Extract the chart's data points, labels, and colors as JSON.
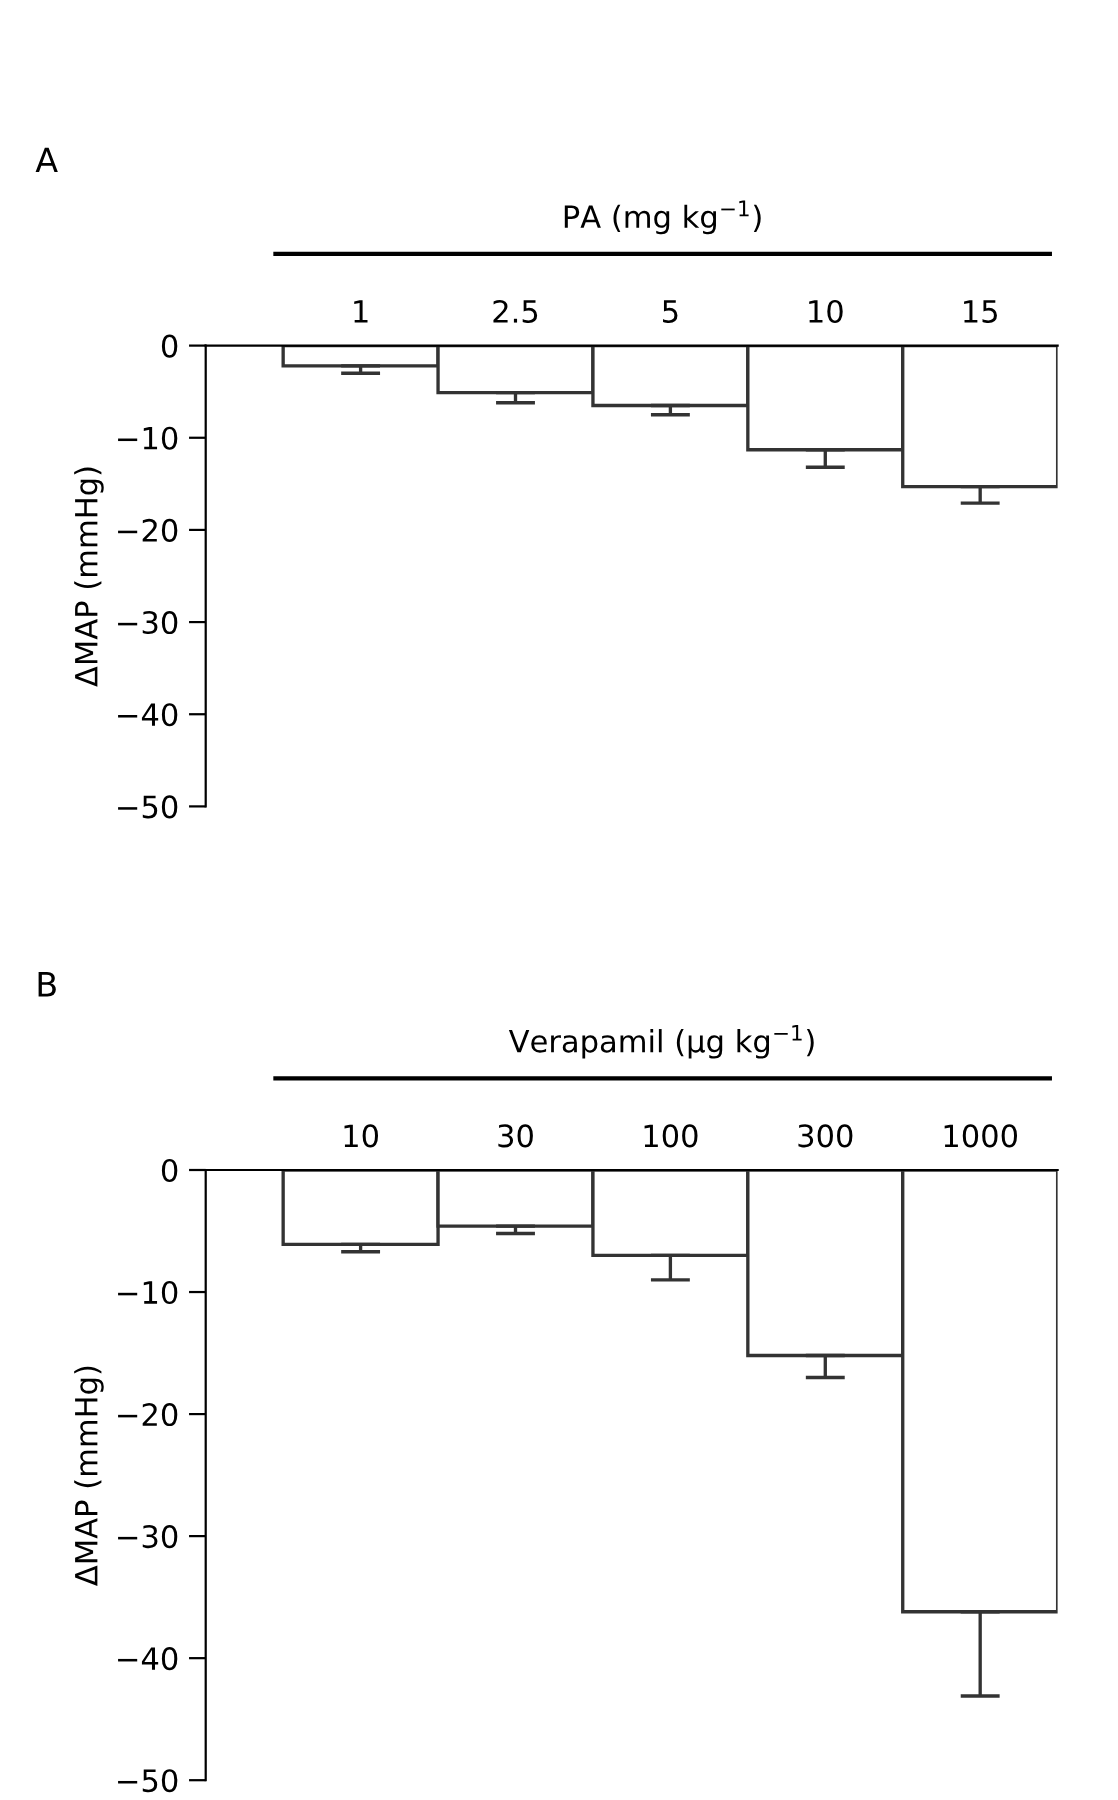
{
  "chart_data": [
    {
      "type": "bar",
      "xlabel": "PA (mg kg$^{−1}$)",
      "ylabel": "ΔMAP (mmHg)",
      "annotations": [
        "A"
      ],
      "categories": [
        "1",
        "2.5",
        "5",
        "10",
        "15"
      ],
      "series": [
        {
          "color": "#ffffff",
          "values": [
            -2.2,
            -5.1,
            -6.5,
            -11.3,
            -15.3
          ],
          "errors": [
            [
              -3.0,
              -2.2
            ],
            [
              -6.2,
              -5.1
            ],
            [
              -7.5,
              -6.5
            ],
            [
              -13.2,
              -11.3
            ],
            [
              -17.1,
              -15.3
            ]
          ]
        }
      ],
      "ylim": [
        -50,
        0
      ],
      "yticks": [
        {
          "value": 0,
          "label": "0"
        },
        {
          "value": -10,
          "label": "−10"
        },
        {
          "value": -20,
          "label": "−20"
        },
        {
          "value": -30,
          "label": "−30"
        },
        {
          "value": -40,
          "label": "−40"
        },
        {
          "value": -50,
          "label": "−50"
        }
      ],
      "grid": false,
      "legend": false
    },
    {
      "type": "bar",
      "xlabel": "Verapamil (μg kg$^{−1}$)",
      "ylabel": "ΔMAP (mmHg)",
      "annotations": [
        "B"
      ],
      "categories": [
        "10",
        "30",
        "100",
        "300",
        "1000"
      ],
      "series": [
        {
          "color": "#ffffff",
          "values": [
            -6.1,
            -4.6,
            -7.0,
            -15.2,
            -36.2
          ],
          "errors": [
            [
              -6.7,
              -6.1
            ],
            [
              -5.2,
              -4.6
            ],
            [
              -9.0,
              -7.0
            ],
            [
              -17.0,
              -15.2
            ],
            [
              -43.1,
              -36.2
            ]
          ]
        }
      ],
      "ylim": [
        -50,
        0
      ],
      "yticks": [
        {
          "value": 0,
          "label": "0"
        },
        {
          "value": -10,
          "label": "−10"
        },
        {
          "value": -20,
          "label": "−20"
        },
        {
          "value": -30,
          "label": "−30"
        },
        {
          "value": -40,
          "label": "−40"
        },
        {
          "value": -50,
          "label": "−50"
        }
      ],
      "grid": false,
      "legend": false
    }
  ]
}
